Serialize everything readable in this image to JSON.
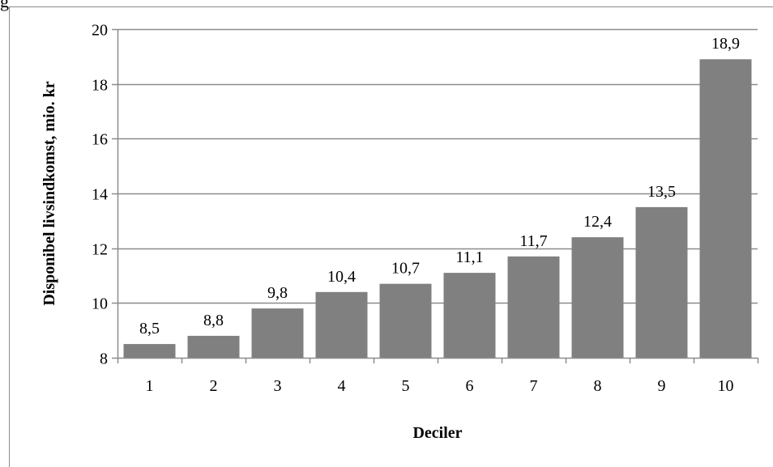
{
  "top_text": "g",
  "colors": {
    "bar": "#808080",
    "grid": "#8c8c8c",
    "axis": "#8c8c8c"
  },
  "chart_data": {
    "type": "bar",
    "categories": [
      "1",
      "2",
      "3",
      "4",
      "5",
      "6",
      "7",
      "8",
      "9",
      "10"
    ],
    "values": [
      8.5,
      8.8,
      9.8,
      10.4,
      10.7,
      11.1,
      11.7,
      12.4,
      13.5,
      18.9
    ],
    "data_labels": [
      "8,5",
      "8,8",
      "9,8",
      "10,4",
      "10,7",
      "11,1",
      "11,7",
      "12,4",
      "13,5",
      "18,9"
    ],
    "title": "",
    "xlabel": "Deciler",
    "ylabel": "Disponibel livsindkomst, mio. kr",
    "ylim": [
      8,
      20
    ],
    "yticks": [
      8,
      10,
      12,
      14,
      16,
      18,
      20
    ],
    "ytick_labels": [
      "8",
      "10",
      "12",
      "14",
      "16",
      "18",
      "20"
    ],
    "grid": true,
    "legend": "none"
  }
}
